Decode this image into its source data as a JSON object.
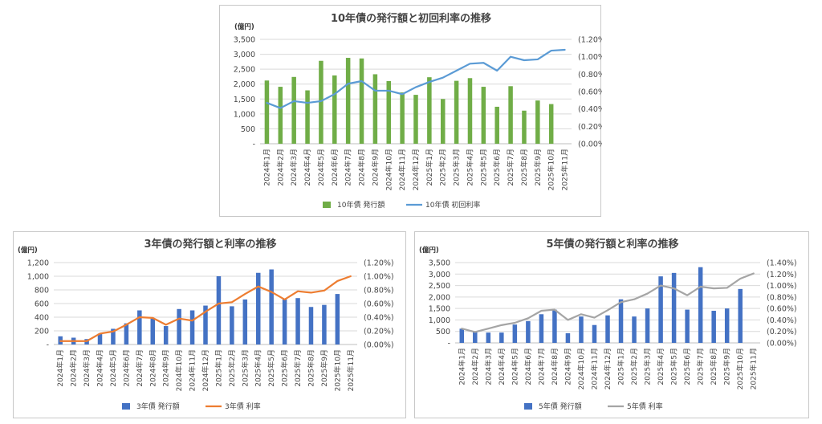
{
  "chart_data": [
    {
      "id": "ten_year",
      "type": "bar+line",
      "title": "10年債の発行額と初回利率の推移",
      "unit_label": "(億円)",
      "categories": [
        "2024年1月",
        "2024年2月",
        "2024年3月",
        "2024年4月",
        "2024年5月",
        "2024年6月",
        "2024年7月",
        "2024年8月",
        "2024年9月",
        "2024年10月",
        "2024年11月",
        "2024年12月",
        "2025年1月",
        "2025年2月",
        "2025年3月",
        "2025年4月",
        "2025年5月",
        "2025年6月",
        "2025年7月",
        "2025年8月",
        "2025年9月",
        "2025年10月",
        "2025年11月"
      ],
      "series": [
        {
          "name": "10年債 発行額",
          "kind": "bar",
          "axis": "left",
          "color": "#70ad47",
          "values": [
            2120,
            1910,
            2240,
            1790,
            2780,
            2290,
            2880,
            2860,
            2330,
            2100,
            1720,
            1640,
            2230,
            1500,
            2110,
            2200,
            1910,
            1240,
            1930,
            1110,
            1450,
            1330,
            null
          ]
        },
        {
          "name": "10年債 初回利率",
          "kind": "line",
          "axis": "right",
          "color": "#5b9bd5",
          "values": [
            0.47,
            0.41,
            0.49,
            0.47,
            0.49,
            0.57,
            0.69,
            0.72,
            0.61,
            0.61,
            0.57,
            0.65,
            0.71,
            0.76,
            0.84,
            0.92,
            0.93,
            0.84,
            1.0,
            0.96,
            0.97,
            1.07,
            1.08
          ]
        }
      ],
      "ylim_left": [
        0,
        3500
      ],
      "yticks_left": [
        0,
        500,
        1000,
        1500,
        2000,
        2500,
        3000,
        3500
      ],
      "yticklabels_left": [
        "-",
        "500",
        "1,000",
        "1,500",
        "2,000",
        "2,500",
        "3,000",
        "3,500"
      ],
      "ylim_right": [
        0,
        1.2
      ],
      "yticks_right": [
        0,
        0.2,
        0.4,
        0.6,
        0.8,
        1.0,
        1.2
      ],
      "yticklabels_right": [
        "(0.00%)",
        "(0.20%)",
        "(0.40%)",
        "(0.60%)",
        "(0.80%)",
        "(1.00%)",
        "(1.20%)"
      ],
      "legend_position": "bottom",
      "grid": true
    },
    {
      "id": "three_year",
      "type": "bar+line",
      "title": "3年債の発行額と利率の推移",
      "unit_label": "(億円)",
      "categories": [
        "2024年1月",
        "2024年2月",
        "2024年3月",
        "2024年4月",
        "2024年5月",
        "2024年6月",
        "2024年7月",
        "2024年8月",
        "2024年9月",
        "2024年10月",
        "2024年11月",
        "2024年12月",
        "2025年1月",
        "2025年2月",
        "2025年3月",
        "2025年4月",
        "2025年5月",
        "2025年6月",
        "2025年7月",
        "2025年8月",
        "2025年9月",
        "2025年10月",
        "2025年11月"
      ],
      "series": [
        {
          "name": "3年債 発行額",
          "kind": "bar",
          "axis": "left",
          "color": "#4472c4",
          "values": [
            120,
            100,
            80,
            160,
            230,
            310,
            500,
            380,
            270,
            520,
            500,
            570,
            1000,
            560,
            660,
            1050,
            1100,
            660,
            680,
            550,
            580,
            740,
            null
          ]
        },
        {
          "name": "3年債 利率",
          "kind": "line",
          "axis": "right",
          "color": "#ed7d31",
          "values": [
            0.05,
            0.05,
            0.05,
            0.16,
            0.19,
            0.29,
            0.4,
            0.39,
            0.29,
            0.38,
            0.35,
            0.48,
            0.6,
            0.62,
            0.74,
            0.85,
            0.77,
            0.66,
            0.78,
            0.76,
            0.79,
            0.93,
            1.0
          ]
        }
      ],
      "ylim_left": [
        0,
        1200
      ],
      "yticks_left": [
        0,
        200,
        400,
        600,
        800,
        1000,
        1200
      ],
      "yticklabels_left": [
        "-",
        "200",
        "400",
        "600",
        "800",
        "1,000",
        "1,200"
      ],
      "ylim_right": [
        0,
        1.2
      ],
      "yticks_right": [
        0,
        0.2,
        0.4,
        0.6,
        0.8,
        1.0,
        1.2
      ],
      "yticklabels_right": [
        "(0.00%)",
        "(0.20%)",
        "(0.40%)",
        "(0.60%)",
        "(0.80%)",
        "(1.00%)",
        "(1.20%)"
      ],
      "legend_position": "bottom",
      "grid": true
    },
    {
      "id": "five_year",
      "type": "bar+line",
      "title": "5年債の発行額と利率の推移",
      "unit_label": "(億円)",
      "categories": [
        "2024年1月",
        "2024年2月",
        "2024年3月",
        "2024年4月",
        "2024年5月",
        "2024年6月",
        "2024年7月",
        "2024年8月",
        "2024年9月",
        "2024年10月",
        "2024年11月",
        "2024年12月",
        "2025年1月",
        "2025年2月",
        "2025年3月",
        "2025年4月",
        "2025年5月",
        "2025年6月",
        "2025年7月",
        "2025年8月",
        "2025年9月",
        "2025年10月",
        "2025年11月"
      ],
      "series": [
        {
          "name": "5年債 発行額",
          "kind": "bar",
          "axis": "left",
          "color": "#4472c4",
          "values": [
            620,
            480,
            450,
            450,
            800,
            950,
            1250,
            1450,
            420,
            1150,
            780,
            1200,
            1900,
            1150,
            1500,
            2900,
            3050,
            1450,
            3300,
            1400,
            1500,
            2350,
            null
          ]
        },
        {
          "name": "5年債 利率",
          "kind": "line",
          "axis": "right",
          "color": "#a5a5a5",
          "values": [
            0.25,
            0.19,
            0.25,
            0.31,
            0.35,
            0.43,
            0.56,
            0.58,
            0.4,
            0.5,
            0.44,
            0.57,
            0.71,
            0.76,
            0.86,
            1.0,
            0.95,
            0.83,
            0.98,
            0.95,
            0.96,
            1.12,
            1.21
          ]
        }
      ],
      "ylim_left": [
        0,
        3500
      ],
      "yticks_left": [
        0,
        500,
        1000,
        1500,
        2000,
        2500,
        3000,
        3500
      ],
      "yticklabels_left": [
        "-",
        "500",
        "1,000",
        "1,500",
        "2,000",
        "2,500",
        "3,000",
        "3,500"
      ],
      "ylim_right": [
        0,
        1.4
      ],
      "yticks_right": [
        0,
        0.2,
        0.4,
        0.6,
        0.8,
        1.0,
        1.2,
        1.4
      ],
      "yticklabels_right": [
        "(0.00%)",
        "(0.20%)",
        "(0.40%)",
        "(0.60%)",
        "(0.80%)",
        "(1.00%)",
        "(1.20%)",
        "(1.40%)"
      ],
      "legend_position": "bottom",
      "grid": true
    }
  ]
}
